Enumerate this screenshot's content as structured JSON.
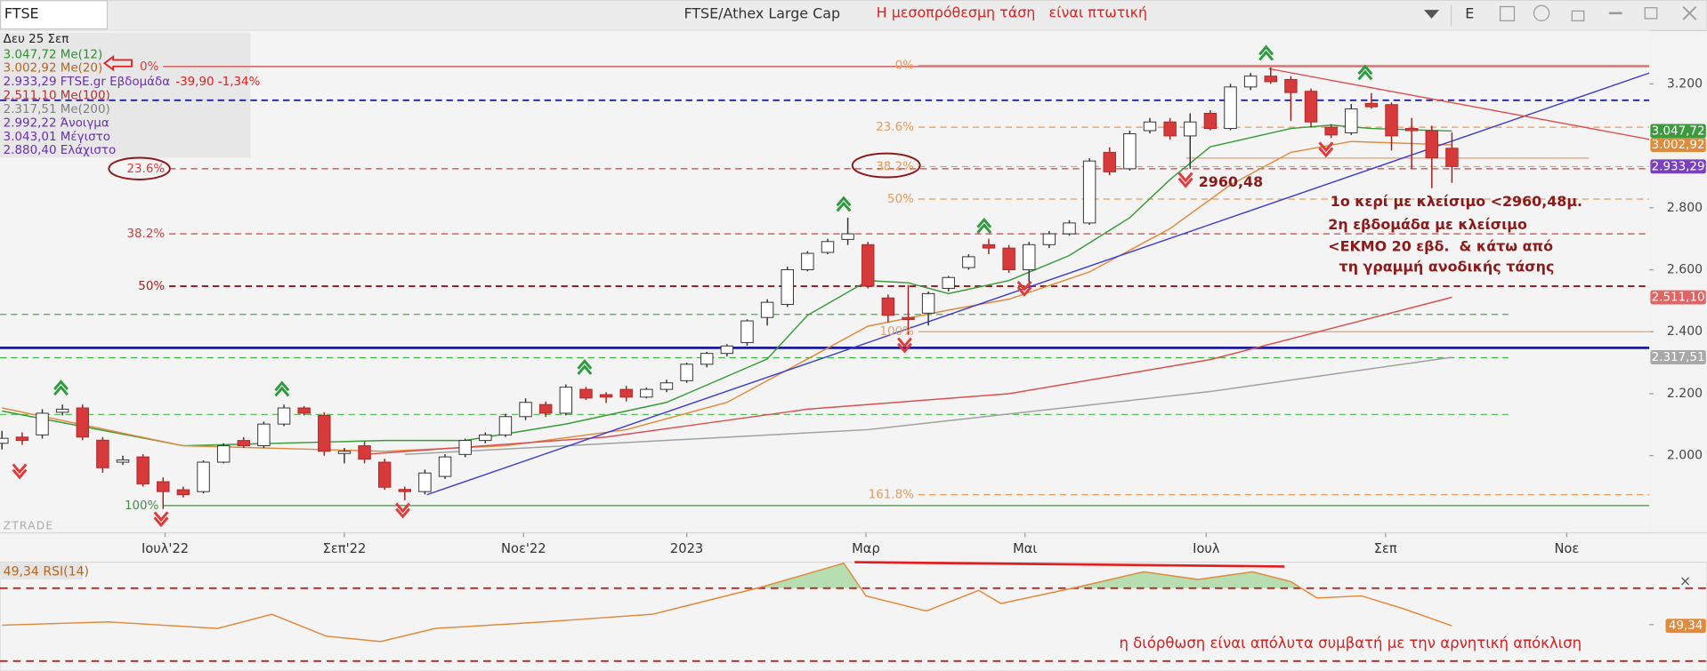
{
  "toolbar": {
    "symbol": "FTSE",
    "title": "FTSE/Athex Large Cap",
    "headline": "Η μεσοπρόθεσμη τάση   είναι πτωτική",
    "menu": "E"
  },
  "info": {
    "date": "Δευ 25 Σεπ",
    "lines": [
      {
        "text": "3.047,72 Me(12)",
        "color": "#2f8f2f"
      },
      {
        "text": "3.002,92 Me(20)",
        "color": "#b8651c"
      },
      {
        "text": "2.933,29 FTSE.gr Εβδομάδα",
        "color": "#6a2fb0"
      },
      {
        "text": "2.511,10 Me(100)",
        "color": "#b83030"
      },
      {
        "text": "2.317,51 Me(200)",
        "color": "#808080"
      },
      {
        "text": "2.992,22 Άνοιγμα",
        "color": "#6a2fb0"
      },
      {
        "text": "3.043,01 Μέγιστο",
        "color": "#6a2fb0"
      },
      {
        "text": "2.880,40 Ελάχιστο",
        "color": "#6a2fb0"
      }
    ],
    "change": "-39,90 -1,34%"
  },
  "chart_data": {
    "type": "candlestick",
    "xlim": [
      -0.1,
      81.8
    ],
    "ylim": [
      1751,
      3372
    ],
    "yticks": [
      {
        "value": 2000,
        "label": "2.000"
      },
      {
        "value": 2200,
        "label": "2.200"
      },
      {
        "value": 2400,
        "label": "2.400"
      },
      {
        "value": 2600,
        "label": "2.600"
      },
      {
        "value": 2800,
        "label": "2.800"
      },
      {
        "value": 3200,
        "label": "3.200"
      }
    ],
    "xticks": [
      {
        "value": 8.1,
        "label": "Ιουλ'22"
      },
      {
        "value": 17,
        "label": "Σεπ'22"
      },
      {
        "value": 25.9,
        "label": "Νοε'22"
      },
      {
        "value": 34,
        "label": "2023"
      },
      {
        "value": 42.9,
        "label": "Μαρ"
      },
      {
        "value": 50.8,
        "label": "Μαι"
      },
      {
        "value": 59.8,
        "label": "Ιουλ"
      },
      {
        "value": 68.7,
        "label": "Σεπ"
      },
      {
        "value": 77.7,
        "label": "Νοε"
      }
    ],
    "candles": {
      "up_color": "#ffffff",
      "down_color": "#d63a3a",
      "open": [
        2040,
        2060,
        2067,
        2140,
        2154,
        2050,
        1979,
        1996,
        1916,
        1890,
        1884,
        1979,
        2049,
        2032,
        2102,
        2154,
        2130,
        2007,
        2032,
        1979,
        1891,
        1884,
        1933,
        2004,
        2049,
        2067,
        2126,
        2165,
        2137,
        2214,
        2197,
        2214,
        2189,
        2214,
        2242,
        2295,
        2330,
        2365,
        2446,
        2488,
        2600,
        2656,
        2698,
        2681,
        2509,
        2446,
        2460,
        2540,
        2607,
        2681,
        2670,
        2600,
        2681,
        2716,
        2751,
        2979,
        2926,
        3049,
        3077,
        3032,
        3105,
        3056,
        3190,
        3225,
        3214,
        3176,
        3060,
        3042,
        3137,
        3133,
        3056,
        3049,
        2992.22
      ],
      "high": [
        2080,
        2075,
        2150,
        2165,
        2165,
        2060,
        2000,
        2005,
        1930,
        1900,
        1985,
        2040,
        2060,
        2110,
        2165,
        2160,
        2140,
        2025,
        2045,
        1990,
        1900,
        1955,
        2005,
        2055,
        2075,
        2135,
        2185,
        2175,
        2230,
        2222,
        2205,
        2225,
        2220,
        2245,
        2300,
        2335,
        2360,
        2440,
        2505,
        2610,
        2660,
        2700,
        2768,
        2690,
        2520,
        2551,
        2530,
        2580,
        2650,
        2700,
        2680,
        2690,
        2725,
        2760,
        2960,
        2995,
        3049,
        3090,
        3090,
        3105,
        3115,
        3200,
        3235,
        3253,
        3225,
        3185,
        3070,
        3135,
        3170,
        3140,
        3090,
        3065,
        3043.01
      ],
      "low": [
        2020,
        2035,
        2055,
        2130,
        2050,
        1945,
        1970,
        1900,
        1828,
        1865,
        1878,
        1975,
        2025,
        2025,
        2095,
        2130,
        2000,
        1975,
        1975,
        1890,
        1856,
        1875,
        1925,
        1995,
        2040,
        2060,
        2115,
        2125,
        2130,
        2180,
        2170,
        2175,
        2185,
        2205,
        2235,
        2285,
        2320,
        2355,
        2420,
        2480,
        2595,
        2650,
        2680,
        2540,
        2430,
        2390,
        2420,
        2530,
        2600,
        2650,
        2590,
        2560,
        2670,
        2710,
        2745,
        2905,
        2920,
        3040,
        3020,
        2926,
        3050,
        3050,
        3180,
        3200,
        3080,
        3060,
        3025,
        3035,
        3120,
        2985,
        2926,
        2863,
        2880.4
      ],
      "close": [
        2056,
        2049,
        2137,
        2150,
        2060,
        1961,
        1986,
        1909,
        1884,
        1874,
        1979,
        2032,
        2032,
        2102,
        2154,
        2137,
        2014,
        2014,
        1989,
        1898,
        1884,
        1944,
        1996,
        2049,
        2067,
        2126,
        2172,
        2137,
        2221,
        2186,
        2189,
        2189,
        2214,
        2235,
        2295,
        2330,
        2354,
        2435,
        2495,
        2600,
        2653,
        2691,
        2716,
        2547,
        2453,
        2439,
        2523,
        2575,
        2642,
        2670,
        2600,
        2681,
        2716,
        2751,
        2951,
        2916,
        3039,
        3077,
        3032,
        3077,
        3056,
        3190,
        3225,
        3207,
        3172,
        3077,
        3035,
        3119,
        3126,
        3032,
        3049,
        2961,
        2933.29
      ]
    },
    "series": [
      {
        "name": "Me(12)",
        "color": "#3a9a3a",
        "x": [
          0,
          9,
          19,
          23,
          28,
          33,
          38,
          40,
          43,
          45,
          47,
          50,
          53,
          56,
          58,
          60,
          64,
          66,
          68,
          72
        ],
        "values": [
          2144,
          2032,
          2049,
          2049,
          2102,
          2172,
          2312,
          2453,
          2565,
          2558,
          2523,
          2565,
          2646,
          2768,
          2891,
          2997,
          3056,
          3067,
          3056,
          3047.72
        ]
      },
      {
        "name": "Me(20)",
        "color": "#e08a3c",
        "x": [
          0,
          9,
          19,
          25,
          31,
          36,
          40,
          43,
          47,
          50,
          54,
          58,
          61,
          64,
          67,
          72
        ],
        "values": [
          2154,
          2032,
          2014,
          2032,
          2084,
          2172,
          2312,
          2418,
          2470,
          2505,
          2593,
          2733,
          2874,
          2979,
          3014,
          3002.92
        ]
      },
      {
        "name": "Me(100)",
        "color": "#d95050",
        "x": [
          18,
          30,
          40,
          50,
          60,
          72
        ],
        "values": [
          2004,
          2060,
          2150,
          2200,
          2310,
          2511.1
        ]
      },
      {
        "name": "Me(200)",
        "color": "#a0a0a0",
        "x": [
          20,
          43,
          60,
          72
        ],
        "values": [
          2004,
          2084,
          2207,
          2317.51
        ]
      }
    ],
    "tags": [
      {
        "value": 3047.72,
        "label": "3.047,72",
        "color": "#3c9a3c"
      },
      {
        "value": 3002.92,
        "label": "3.002,92",
        "color": "#e08a3c"
      },
      {
        "value": 2933.29,
        "label": "2.933,29",
        "color": "#7a40c0"
      },
      {
        "value": 2511.1,
        "label": "2.511,10",
        "color": "#e06464"
      },
      {
        "value": 2317.51,
        "label": "2.317,51",
        "color": "#a8a8a8"
      }
    ],
    "levels": [
      {
        "value": 3256,
        "label": "0%",
        "color": "#d04040",
        "dash": false,
        "x": [
          8,
          81.8
        ]
      },
      {
        "value": 2926,
        "label": "23.6%",
        "color": "#d04040",
        "dash": true,
        "x": [
          8.3,
          81.8
        ]
      },
      {
        "value": 2716,
        "label": "38.2%",
        "color": "#d04040",
        "dash": true,
        "x": [
          8.3,
          81.8
        ]
      },
      {
        "value": 2547,
        "label": "50%",
        "color": "#a02020",
        "dash": true,
        "x": [
          8.3,
          81.8
        ]
      },
      {
        "value": 1839,
        "label": "100%",
        "color": "#4a8a4a",
        "dash": false,
        "x": [
          8,
          81.8
        ]
      },
      {
        "value": 3260,
        "label": "0%",
        "color": "#e89a5a",
        "dash": false,
        "x": [
          45.5,
          81.8
        ]
      },
      {
        "value": 3060,
        "label": "23.6%",
        "color": "#e89a5a",
        "dash": true,
        "x": [
          45.5,
          81.8
        ]
      },
      {
        "value": 2933,
        "label": "38.2%",
        "color": "#e89a5a",
        "dash": true,
        "x": [
          45.5,
          81.8
        ]
      },
      {
        "value": 2828,
        "label": "50%",
        "color": "#e89a5a",
        "dash": true,
        "x": [
          45.5,
          81.8
        ]
      },
      {
        "value": 2400,
        "label": "100%",
        "color": "#e0a070",
        "dash": false,
        "x": [
          45.5,
          81.8
        ]
      },
      {
        "value": 1874,
        "label": "161.8%",
        "color": "#e89a5a",
        "dash": true,
        "x": [
          45.5,
          81.8
        ]
      },
      {
        "value": 2960.48,
        "color": "#e0a070",
        "dash": false,
        "x": [
          58.8,
          78.8
        ]
      },
      {
        "value": 3147,
        "color": "#2020a0",
        "dash": true,
        "x": [
          -0.1,
          81.8
        ]
      },
      {
        "value": 2348,
        "color": "#1a1aa0",
        "dash": false,
        "x": [
          -0.1,
          81.8
        ]
      },
      {
        "value": 2456,
        "color": "#3cb43c",
        "dash": true,
        "x": [
          -0.1,
          74.8
        ]
      },
      {
        "value": 2316,
        "color": "#3cb43c",
        "dash": true,
        "x": [
          -0.1,
          74.8
        ]
      },
      {
        "value": 2133,
        "color": "#5ac05a",
        "dash": true,
        "x": [
          -0.1,
          74.8
        ]
      }
    ],
    "trendlines": [
      {
        "color": "#3a3ad0",
        "x": [
          21.1,
          81.8
        ],
        "values": [
          1874,
          3235
        ]
      },
      {
        "color": "#e04848",
        "x": [
          62.9,
          81.8
        ],
        "values": [
          3249,
          3021
        ]
      }
    ],
    "annotations": [
      "2960,48",
      "1ο κερί με κλείσιμο <2960,48μ.",
      "2η εβδομάδα με κλείσιμο",
      "<ΕΚΜΟ 20 εβδ.  & κάτω από",
      "τη γραμμή ανοδικής τάσης"
    ],
    "watermark": "ZTRADE"
  },
  "rsi": {
    "title": "49,34 RSI(14)",
    "color": "#e08a3c",
    "ylim": [
      27.6,
      83.7
    ],
    "yticks": [
      50
    ],
    "levels": [
      70,
      30
    ],
    "x": [
      0,
      5.3,
      10.7,
      13.4,
      16.1,
      18.8,
      21.5,
      26.9,
      32.3,
      37.7,
      41.8,
      42.9,
      45.9,
      48.5,
      49.6,
      53.4,
      56.7,
      59.4,
      62.1,
      64,
      65.3,
      67.5,
      69.6,
      72
    ],
    "values": [
      49.7,
      51.5,
      47.9,
      55.7,
      43.7,
      40.7,
      47.9,
      51.5,
      55.7,
      70.6,
      83.7,
      65.8,
      57.5,
      68.8,
      61.6,
      70.6,
      79,
      74.8,
      79,
      73.6,
      64.6,
      65.8,
      58.7,
      49.34
    ],
    "tag": {
      "value": 49.34,
      "label": "49,34"
    },
    "note": "η διόρθωση είναι απόλυτα συμβατή με την αρνητική απόκλιση"
  }
}
